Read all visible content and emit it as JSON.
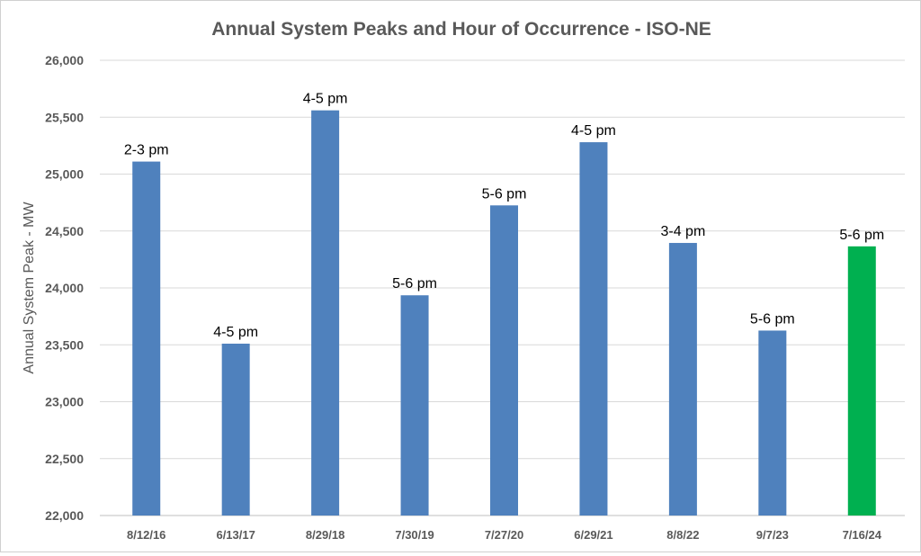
{
  "chart_data": {
    "type": "bar",
    "title": "Annual System Peaks and Hour of Occurrence - ISO-NE",
    "xlabel": "",
    "ylabel": "Annual System Peak - MW",
    "ylim": [
      22000,
      26000
    ],
    "yticks": [
      22000,
      22500,
      23000,
      23500,
      24000,
      24500,
      25000,
      25500,
      26000
    ],
    "ytick_labels": [
      "22,000",
      "22,500",
      "23,000",
      "23,500",
      "24,000",
      "24,500",
      "25,000",
      "25,500",
      "26,000"
    ],
    "grid": true,
    "categories": [
      "8/12/16",
      "6/13/17",
      "8/29/18",
      "7/30/19",
      "7/27/20",
      "6/29/21",
      "8/8/22",
      "9/7/23",
      "7/16/24"
    ],
    "values": [
      25110,
      23510,
      25560,
      23935,
      24725,
      25280,
      24395,
      23625,
      24365
    ],
    "data_labels": [
      "2-3 pm",
      "4-5 pm",
      "4-5 pm",
      "5-6 pm",
      "5-6 pm",
      "4-5 pm",
      "3-4 pm",
      "5-6 pm",
      "5-6 pm"
    ],
    "colors": [
      "#4F81BD",
      "#4F81BD",
      "#4F81BD",
      "#4F81BD",
      "#4F81BD",
      "#4F81BD",
      "#4F81BD",
      "#4F81BD",
      "#00B050"
    ]
  }
}
